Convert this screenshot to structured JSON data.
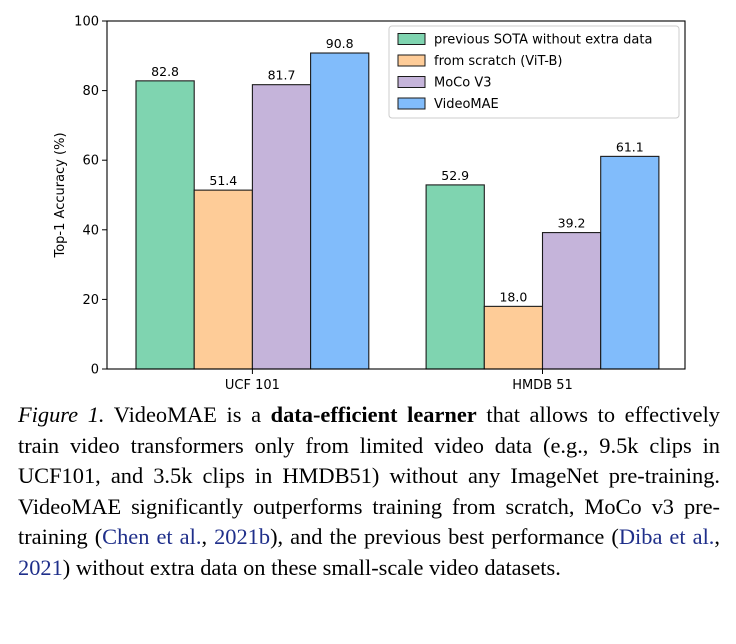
{
  "chart_data": {
    "type": "bar",
    "categories": [
      "UCF 101",
      "HMDB 51"
    ],
    "series": [
      {
        "name": "previous SOTA without extra data",
        "color": "#7fd4b0",
        "values": [
          82.8,
          52.9
        ],
        "labels": [
          "82.8",
          "52.9"
        ]
      },
      {
        "name": "from scratch (ViT-B)",
        "color": "#fecc98",
        "values": [
          51.4,
          18.0
        ],
        "labels": [
          "51.4",
          "18.0"
        ]
      },
      {
        "name": "MoCo V3",
        "color": "#c5b4da",
        "values": [
          81.7,
          39.2
        ],
        "labels": [
          "81.7",
          "39.2"
        ]
      },
      {
        "name": "VideoMAE",
        "color": "#81bcfb",
        "values": [
          90.8,
          61.1
        ],
        "labels": [
          "90.8",
          "61.1"
        ]
      }
    ],
    "ylabel": "Top-1 Accuracy (%)",
    "xlabel": "",
    "ylim": [
      0,
      100
    ],
    "yticks": [
      "0",
      "20",
      "40",
      "60",
      "80",
      "100"
    ],
    "legend_position": "top-right",
    "grid": false
  },
  "caption": {
    "fig_label": "Figure 1.",
    "text_1": " VideoMAE is a ",
    "emphasis": "data-efficient learner",
    "text_2": " that allows to effectively train video transformers only from limited video data (e.g., 9.5k clips in UCF101, and 3.5k clips in HMDB51) without any ImageNet pre-training. VideoMAE significantly outperforms training from scratch, MoCo v3 pre-training (",
    "cite_1_author": "Chen et al.",
    "cite_1_sep": ", ",
    "cite_1_year": "2021b",
    "text_3": "), and the previous best performance (",
    "cite_2_author": "Diba et al.",
    "cite_2_sep": ", ",
    "cite_2_year": "2021",
    "text_4": ") without extra data on these small-scale video datasets."
  }
}
